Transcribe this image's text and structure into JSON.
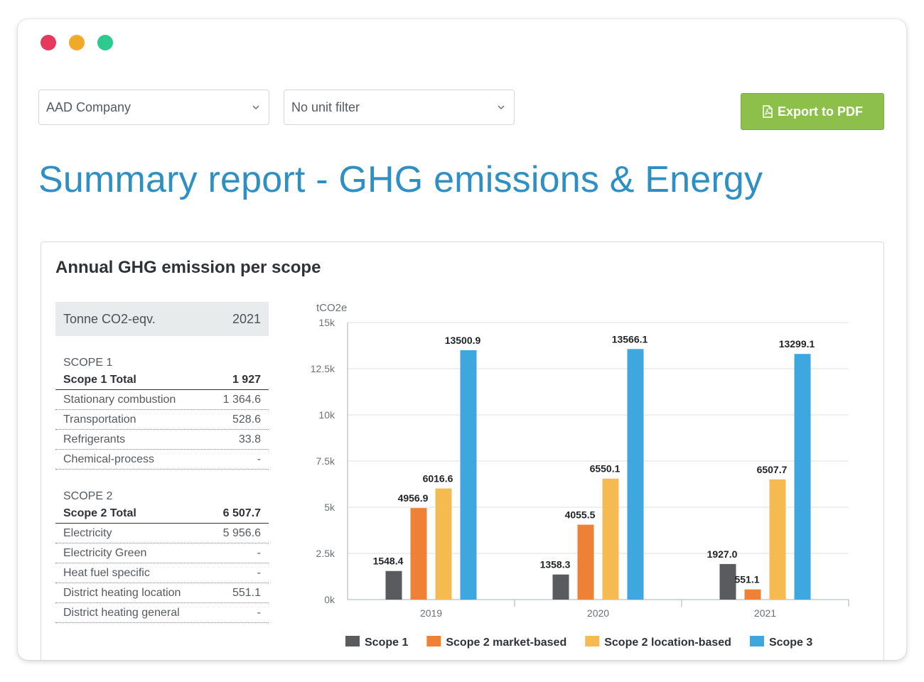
{
  "window": {
    "controls": [
      "close",
      "minimize",
      "zoom"
    ]
  },
  "filters": {
    "company": {
      "value": "AAD Company",
      "icon": "chevron-down-icon"
    },
    "unit": {
      "value": "No unit filter",
      "icon": "chevron-down-icon"
    }
  },
  "export_button": {
    "label": "Export to PDF",
    "icon": "pdf-file-icon",
    "color": "#8cc04b"
  },
  "page_title": "Summary report - GHG emissions & Energy",
  "card": {
    "title": "Annual GHG emission per scope",
    "table": {
      "header_label": "Tonne CO2-eqv.",
      "header_year": "2021",
      "sections": [
        {
          "label": "SCOPE 1",
          "total_label": "Scope 1 Total",
          "total_value": "1 927",
          "rows": [
            {
              "label": "Stationary combustion",
              "value": "1 364.6"
            },
            {
              "label": "Transportation",
              "value": "528.6"
            },
            {
              "label": "Refrigerants",
              "value": "33.8"
            },
            {
              "label": "Chemical-process",
              "value": "-"
            }
          ]
        },
        {
          "label": "SCOPE 2",
          "total_label": "Scope 2 Total",
          "total_value": "6 507.7",
          "rows": [
            {
              "label": "Electricity",
              "value": "5 956.6"
            },
            {
              "label": "Electricity Green",
              "value": "-"
            },
            {
              "label": "Heat fuel specific",
              "value": "-"
            },
            {
              "label": "District heating location",
              "value": "551.1"
            },
            {
              "label": "District heating general",
              "value": "-"
            }
          ]
        }
      ]
    }
  },
  "chart_data": {
    "type": "bar",
    "ylabel": "tCO2e",
    "ylim": [
      0,
      15000
    ],
    "yticks": [
      "0k",
      "2.5k",
      "5k",
      "7.5k",
      "10k",
      "12.5k",
      "15k"
    ],
    "categories": [
      "2019",
      "2020",
      "2021"
    ],
    "grid": true,
    "legend_position": "bottom",
    "series": [
      {
        "name": "Scope 1",
        "color": "#595b5e",
        "values": [
          1548.4,
          1358.3,
          1927.0
        ],
        "labels": [
          "1548.4",
          "1358.3",
          "1927.0"
        ]
      },
      {
        "name": "Scope 2 market-based",
        "color": "#ef8137",
        "values": [
          4956.9,
          4055.5,
          551.1
        ],
        "labels": [
          "4956.9",
          "4055.5",
          "551.1"
        ]
      },
      {
        "name": "Scope 2 location-based",
        "color": "#f6bb50",
        "values": [
          6016.6,
          6550.1,
          6507.7
        ],
        "labels": [
          "6016.6",
          "6550.1",
          "6507.7"
        ]
      },
      {
        "name": "Scope 3",
        "color": "#3ea7e0",
        "values": [
          13500.9,
          13566.1,
          13299.1
        ],
        "labels": [
          "13500.9",
          "13566.1",
          "13299.1"
        ]
      }
    ]
  }
}
